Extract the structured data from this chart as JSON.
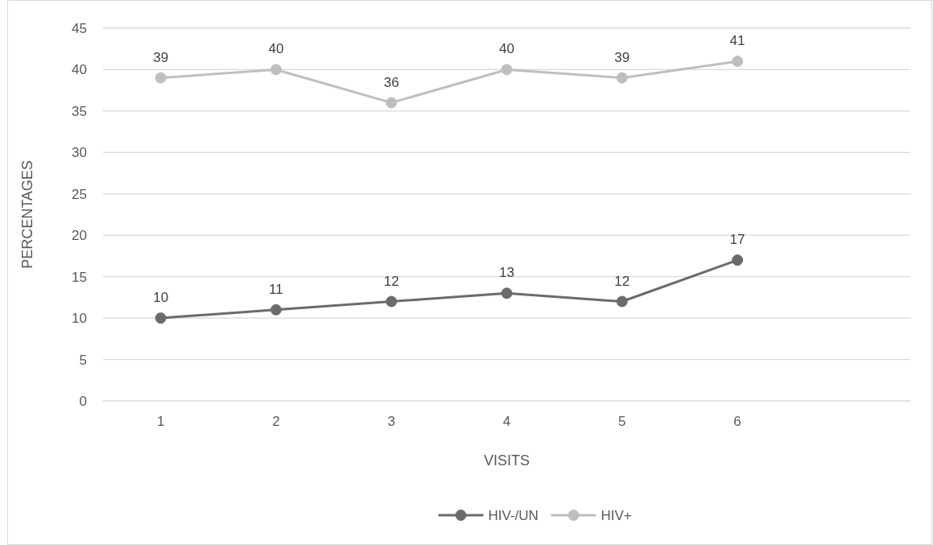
{
  "chart_data": {
    "type": "line",
    "xlabel": "VISITS",
    "ylabel": "PERCENTAGES",
    "categories": [
      "1",
      "2",
      "3",
      "4",
      "5",
      "6",
      null
    ],
    "series": [
      {
        "name": "HIV-/UN",
        "color": "#6b6b6b",
        "values": [
          10,
          11,
          12,
          13,
          12,
          17,
          null
        ]
      },
      {
        "name": "HIV+",
        "color": "#bfbfbf",
        "values": [
          39,
          40,
          36,
          40,
          39,
          41,
          null
        ]
      }
    ],
    "ylim": [
      0,
      45
    ],
    "yticks": [
      0,
      5,
      10,
      15,
      20,
      25,
      30,
      35,
      40,
      45
    ],
    "grid": "y",
    "legend": "bottom",
    "data_labels": true,
    "marker": "circle",
    "line_style": "solid"
  }
}
